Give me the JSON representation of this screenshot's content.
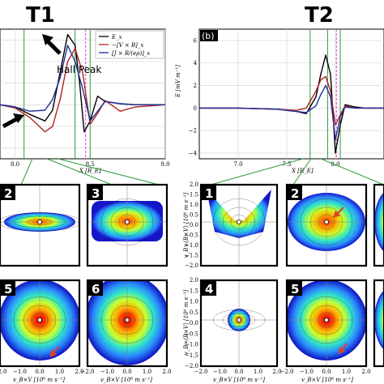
{
  "figure": {
    "titles": [
      "T1",
      "T2"
    ],
    "panel_b_tag": "(b)",
    "annotation": "Hall Peak",
    "legend": [
      "E_x",
      "−[V × B]_x",
      "[J × B/(eρ)]_x"
    ],
    "colors": {
      "ex": "#000000",
      "vxb": "#b22222",
      "jxb": "#1e2f9a",
      "green": "#2a9d3a",
      "magenta": "#d63ad6",
      "arrow": "#e0402a"
    }
  },
  "chart_data": [
    {
      "type": "line",
      "title": "T1",
      "xlabel": "X [R_E]",
      "ylabel": "",
      "xlim": [
        7.9,
        9.0
      ],
      "ylim": [
        -5,
        7
      ],
      "xticks": [
        "8.0",
        "8.5",
        "9.0"
      ],
      "series": [
        {
          "name": "E_x",
          "x": [
            7.9,
            8.0,
            8.1,
            8.2,
            8.25,
            8.3,
            8.35,
            8.4,
            8.43,
            8.46,
            8.5,
            8.55,
            8.6,
            8.7,
            8.8,
            9.0
          ],
          "y": [
            0.0,
            -0.2,
            -0.9,
            -1.5,
            -0.5,
            3.0,
            6.5,
            5.5,
            2.0,
            -2.5,
            -1.5,
            0.8,
            0.3,
            0.1,
            0.0,
            0.0
          ]
        },
        {
          "name": "−[V × B]_x",
          "x": [
            7.9,
            8.0,
            8.1,
            8.2,
            8.25,
            8.3,
            8.35,
            8.4,
            8.45,
            8.5,
            8.55,
            8.6,
            8.7,
            8.8,
            9.0
          ],
          "y": [
            0.0,
            -0.3,
            -1.2,
            -2.5,
            -2.0,
            0.5,
            4.0,
            5.2,
            3.0,
            -1.8,
            -0.8,
            0.4,
            -0.6,
            -0.2,
            0.0
          ]
        },
        {
          "name": "[J × B/(eρ)]_x",
          "x": [
            7.9,
            8.0,
            8.1,
            8.2,
            8.25,
            8.3,
            8.35,
            8.4,
            8.45,
            8.5,
            8.55,
            8.6,
            8.7,
            8.8,
            9.0
          ],
          "y": [
            0.0,
            -0.2,
            -0.6,
            -0.5,
            0.5,
            2.5,
            5.5,
            4.0,
            1.5,
            -1.5,
            -0.6,
            0.3,
            0.1,
            0.0,
            0.0
          ]
        }
      ]
    },
    {
      "type": "line",
      "title": "T2",
      "xlabel": "X [R_E]",
      "ylabel": "E [mV m⁻¹]",
      "xlim": [
        6.6,
        8.5
      ],
      "ylim": [
        -4.5,
        7
      ],
      "xticks": [
        "7.0",
        "7.5",
        "8.0"
      ],
      "yticks": [
        "6",
        "4",
        "2",
        "0",
        "−2",
        "−4"
      ],
      "series": [
        {
          "name": "E_x",
          "x": [
            6.6,
            7.0,
            7.4,
            7.6,
            7.7,
            7.8,
            7.85,
            7.9,
            7.95,
            8.0,
            8.05,
            8.1,
            8.2,
            8.3,
            8.5
          ],
          "y": [
            0.0,
            0.0,
            -0.1,
            -0.3,
            -0.5,
            1.0,
            3.0,
            4.7,
            3.0,
            -4.0,
            -1.5,
            0.3,
            0.1,
            0.0,
            0.0
          ]
        },
        {
          "name": "−[V × B]_x",
          "x": [
            6.6,
            7.0,
            7.4,
            7.6,
            7.7,
            7.8,
            7.85,
            7.9,
            7.95,
            8.0,
            8.05,
            8.1,
            8.2,
            8.3,
            8.5
          ],
          "y": [
            0.0,
            0.0,
            -0.1,
            -0.2,
            0.0,
            1.5,
            2.5,
            2.8,
            1.5,
            -1.5,
            -0.6,
            0.2,
            0.0,
            0.0,
            0.0
          ]
        },
        {
          "name": "[J × B/(eρ)]_x",
          "x": [
            6.6,
            7.0,
            7.4,
            7.6,
            7.7,
            7.8,
            7.85,
            7.9,
            7.95,
            8.0,
            8.05,
            8.1,
            8.2,
            8.3,
            8.5
          ],
          "y": [
            0.0,
            0.0,
            -0.1,
            -0.3,
            -0.4,
            0.2,
            1.2,
            2.0,
            1.0,
            -2.8,
            -0.8,
            0.1,
            0.0,
            0.0,
            0.0
          ]
        }
      ]
    },
    {
      "type": "heatmap",
      "description_panels": [
        "2",
        "3",
        "5",
        "6",
        "1",
        "2",
        "3",
        "4",
        "5",
        "6"
      ],
      "xlabel": "v_B×V [10⁶ m s⁻¹]",
      "ylabel": "v_B×(B×V) [10⁶ m s⁻¹]",
      "xlim": [
        -2.0,
        2.0
      ],
      "ylim": [
        -2.0,
        2.0
      ],
      "xticks": [
        "−2.0",
        "−1.0",
        "0.0",
        "1.0",
        "2.0"
      ],
      "yticks": [
        "2.0",
        "1.5",
        "1.0",
        "0.5",
        "0.0",
        "−0.5",
        "−1.0",
        "−1.5",
        "−2.0"
      ]
    }
  ]
}
